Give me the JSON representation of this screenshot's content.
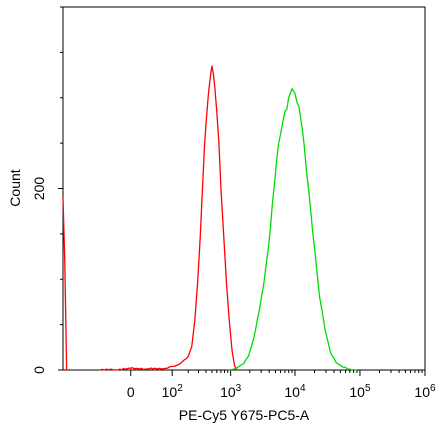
{
  "chart_data": {
    "type": "area",
    "title": "",
    "xlabel": "PE-Cy5 Y675-PC5-A",
    "ylabel": "Count",
    "x_scale": "biexponential",
    "xlim": [
      -300,
      1000000
    ],
    "ylim": [
      0,
      400
    ],
    "grid": false,
    "legend": "none",
    "x_ticks": [
      {
        "value": 0,
        "base": "0",
        "exp": ""
      },
      {
        "value": 100,
        "base": "10",
        "exp": "2"
      },
      {
        "value": 1000,
        "base": "10",
        "exp": "3"
      },
      {
        "value": 10000,
        "base": "10",
        "exp": "4"
      },
      {
        "value": 100000,
        "base": "10",
        "exp": "5"
      },
      {
        "value": 1000000,
        "base": "10",
        "exp": "6"
      }
    ],
    "y_ticks": [
      {
        "value": 0,
        "label": "0"
      },
      {
        "value": 200,
        "label": "200"
      }
    ],
    "y_minor_ticks": [
      50,
      100,
      150,
      250,
      300,
      350,
      400
    ],
    "series": [
      {
        "color": "#ff0000",
        "points": [
          [
            -60,
            0
          ],
          [
            -40,
            1
          ],
          [
            -20,
            0
          ],
          [
            0,
            2
          ],
          [
            20,
            1
          ],
          [
            40,
            2
          ],
          [
            60,
            1
          ],
          [
            80,
            2
          ],
          [
            100,
            4
          ],
          [
            120,
            5
          ],
          [
            150,
            8
          ],
          [
            180,
            12
          ],
          [
            200,
            15
          ],
          [
            230,
            26
          ],
          [
            260,
            55
          ],
          [
            290,
            96
          ],
          [
            320,
            145
          ],
          [
            350,
            200
          ],
          [
            380,
            250
          ],
          [
            410,
            280
          ],
          [
            440,
            305
          ],
          [
            470,
            322
          ],
          [
            500,
            335
          ],
          [
            530,
            326
          ],
          [
            560,
            310
          ],
          [
            600,
            285
          ],
          [
            650,
            250
          ],
          [
            700,
            200
          ],
          [
            780,
            145
          ],
          [
            860,
            95
          ],
          [
            950,
            55
          ],
          [
            1050,
            22
          ],
          [
            1150,
            5
          ],
          [
            1250,
            0
          ]
        ]
      },
      {
        "color": "#00dd00",
        "points": [
          [
            900,
            0
          ],
          [
            1100,
            1
          ],
          [
            1300,
            3
          ],
          [
            1600,
            7
          ],
          [
            1900,
            15
          ],
          [
            2300,
            35
          ],
          [
            2800,
            65
          ],
          [
            3300,
            95
          ],
          [
            3900,
            135
          ],
          [
            4500,
            185
          ],
          [
            5200,
            230
          ],
          [
            6000,
            260
          ],
          [
            7000,
            285
          ],
          [
            8000,
            300
          ],
          [
            9000,
            310
          ],
          [
            10000,
            305
          ],
          [
            11500,
            290
          ],
          [
            13000,
            265
          ],
          [
            15000,
            220
          ],
          [
            17500,
            175
          ],
          [
            20000,
            135
          ],
          [
            24000,
            80
          ],
          [
            29000,
            45
          ],
          [
            35000,
            20
          ],
          [
            43000,
            8
          ],
          [
            55000,
            3
          ],
          [
            70000,
            1
          ],
          [
            90000,
            0
          ]
        ]
      },
      {
        "color": "#ff0000",
        "points": [
          [
            -300,
            190
          ],
          [
            -280,
            120
          ],
          [
            -260,
            0
          ]
        ]
      }
    ]
  }
}
